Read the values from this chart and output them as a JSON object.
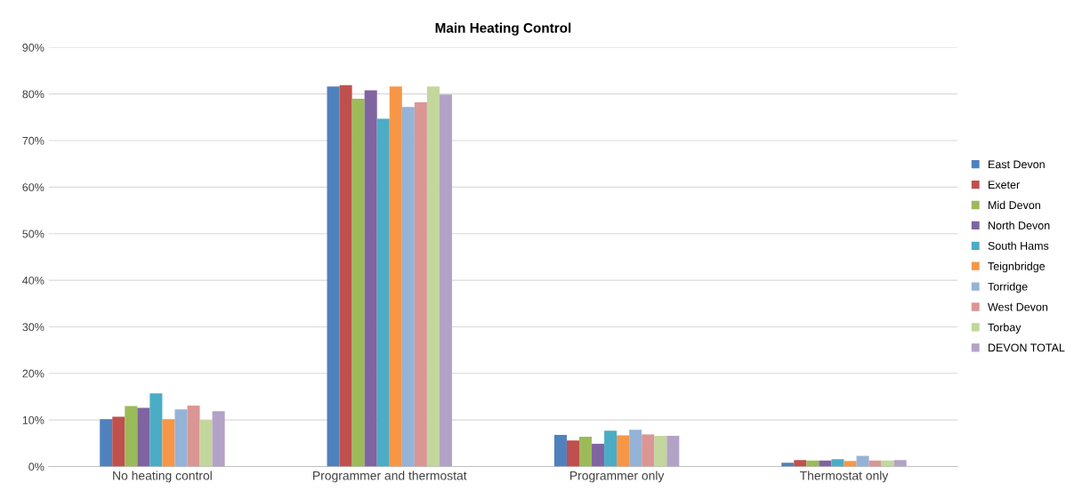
{
  "chart_data": {
    "type": "bar",
    "title": "Main Heating Control",
    "categories": [
      "No heating control",
      "Programmer and thermostat",
      "Programmer only",
      "Thermostat only"
    ],
    "series": [
      {
        "name": "East Devon",
        "color": "#4f81bd",
        "values": [
          10.2,
          81.6,
          6.8,
          0.8
        ]
      },
      {
        "name": "Exeter",
        "color": "#c0504d",
        "values": [
          10.7,
          81.9,
          5.6,
          1.4
        ]
      },
      {
        "name": "Mid Devon",
        "color": "#9bbb59",
        "values": [
          13.0,
          79.0,
          6.4,
          1.3
        ]
      },
      {
        "name": "North Devon",
        "color": "#8064a2",
        "values": [
          12.6,
          80.8,
          4.9,
          1.3
        ]
      },
      {
        "name": "South Hams",
        "color": "#4bacc6",
        "values": [
          15.7,
          74.7,
          7.7,
          1.6
        ]
      },
      {
        "name": "Teignbridge",
        "color": "#f79646",
        "values": [
          10.2,
          81.6,
          6.7,
          1.2
        ]
      },
      {
        "name": "Torridge",
        "color": "#95b3d7",
        "values": [
          12.3,
          77.2,
          7.9,
          2.3
        ]
      },
      {
        "name": "West Devon",
        "color": "#da9694",
        "values": [
          13.1,
          78.2,
          6.9,
          1.3
        ]
      },
      {
        "name": "Torbay",
        "color": "#c3d69b",
        "values": [
          10.0,
          81.6,
          6.6,
          1.3
        ]
      },
      {
        "name": "DEVON TOTAL",
        "color": "#b3a2c7",
        "values": [
          11.9,
          79.9,
          6.6,
          1.4
        ]
      }
    ],
    "ylim": [
      0,
      90
    ],
    "yticks": [
      {
        "value": 0,
        "label": "0%"
      },
      {
        "value": 10,
        "label": "10%"
      },
      {
        "value": 20,
        "label": "20%"
      },
      {
        "value": 30,
        "label": "30%"
      },
      {
        "value": 40,
        "label": "40%"
      },
      {
        "value": 50,
        "label": "50%"
      },
      {
        "value": 60,
        "label": "60%"
      },
      {
        "value": 70,
        "label": "70%"
      },
      {
        "value": 80,
        "label": "80%"
      },
      {
        "value": 90,
        "label": "90%"
      }
    ],
    "grid": "y",
    "legend": "right"
  }
}
